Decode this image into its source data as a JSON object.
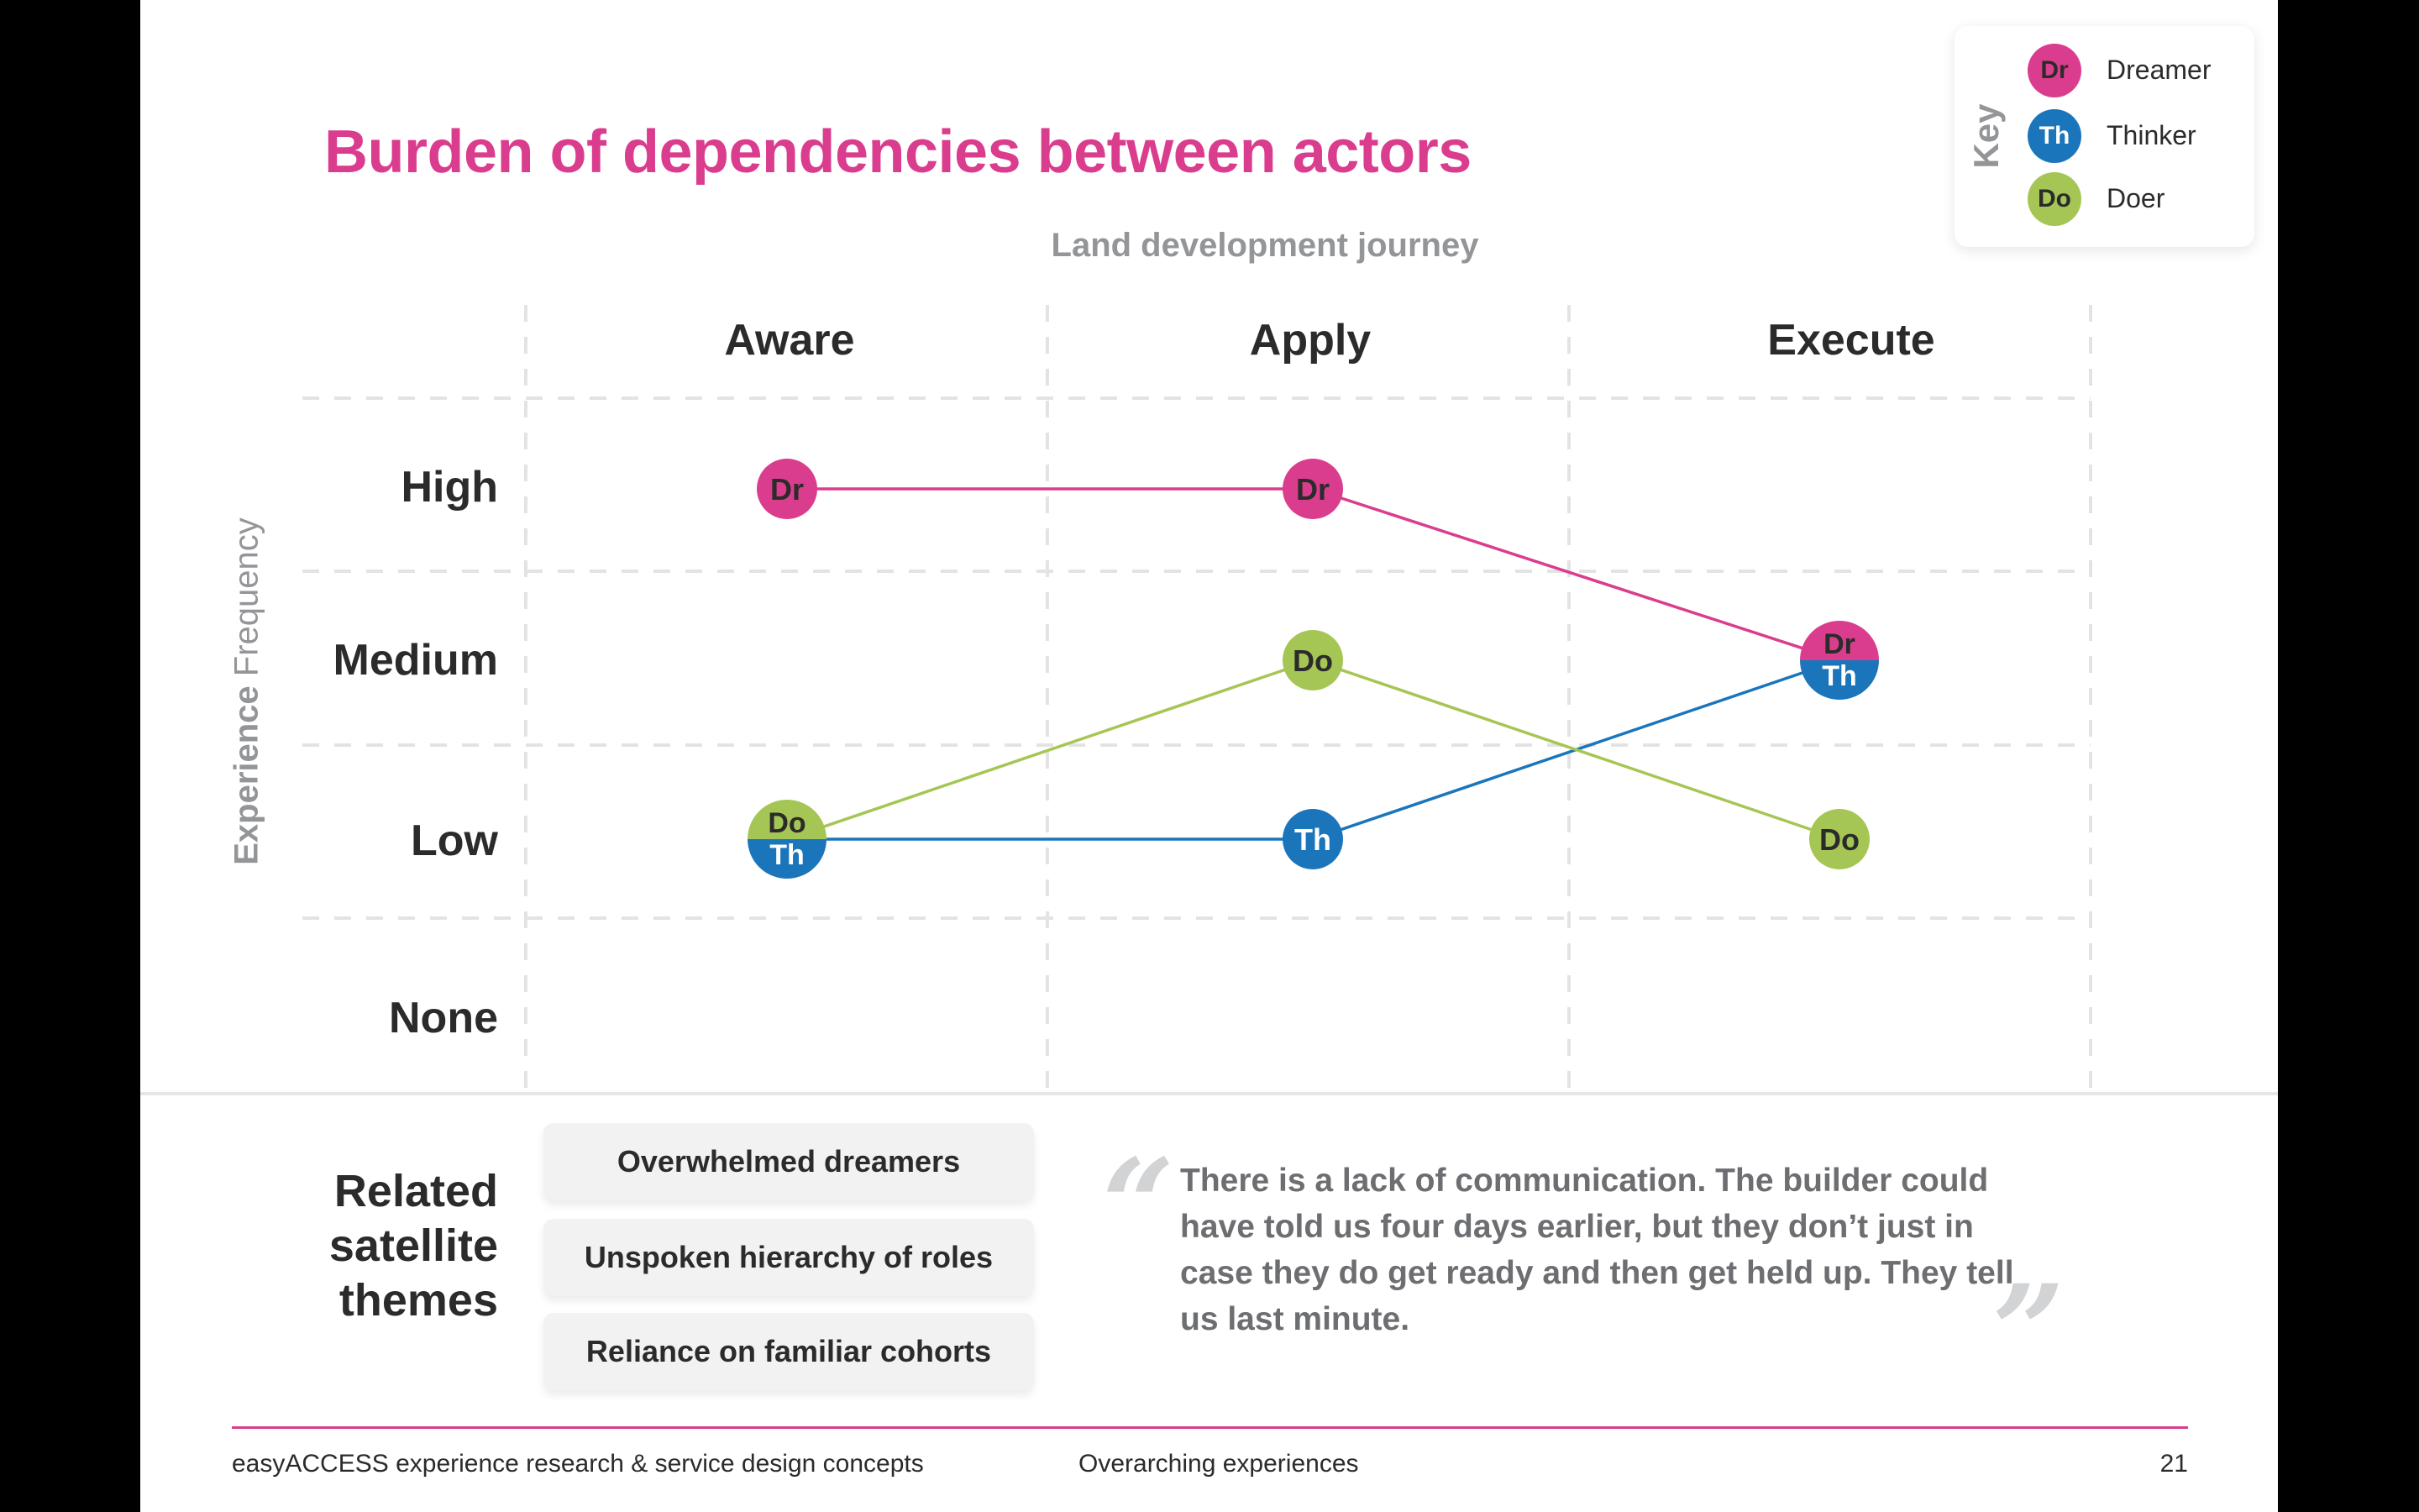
{
  "title": "Burden of dependencies between actors",
  "colors": {
    "dreamer": "#DB3D8E",
    "thinker": "#1B75BB",
    "doer": "#A5C654",
    "grid": "#e3e3e3"
  },
  "key": {
    "title": "Key",
    "items": [
      {
        "abbr": "Dr",
        "label": "Dreamer"
      },
      {
        "abbr": "Th",
        "label": "Thinker"
      },
      {
        "abbr": "Do",
        "label": "Doer"
      }
    ]
  },
  "chart_data": {
    "type": "line",
    "title": "Burden of dependencies between actors",
    "xlabel": "Land development journey",
    "ylabel_bold": "Experience",
    "ylabel_light": "Frequency",
    "categories": [
      "Aware",
      "Apply",
      "Execute"
    ],
    "levels": [
      "High",
      "Medium",
      "Low",
      "None"
    ],
    "grid": true,
    "legend": "top-right",
    "series": [
      {
        "name": "Dreamer",
        "abbr": "Dr",
        "values": [
          "High",
          "High",
          "Medium"
        ]
      },
      {
        "name": "Thinker",
        "abbr": "Th",
        "values": [
          "Low",
          "Low",
          "Medium"
        ]
      },
      {
        "name": "Doer",
        "abbr": "Do",
        "values": [
          "Low",
          "Medium",
          "Low"
        ]
      }
    ]
  },
  "related": {
    "title_lines": [
      "Related",
      "satellite",
      "themes"
    ],
    "themes": [
      "Overwhelmed dreamers",
      "Unspoken hierarchy of roles",
      "Reliance on familiar cohorts"
    ]
  },
  "quote": {
    "open": "“",
    "close": "”",
    "text": "There is a lack of communication. The builder could have told us four days earlier, but they don’t just in case they do get ready and then get held up. They tell us last minute."
  },
  "footer": {
    "left": "easyACCESS experience research & service design concepts",
    "middle": "Overarching experiences",
    "page": "21"
  }
}
